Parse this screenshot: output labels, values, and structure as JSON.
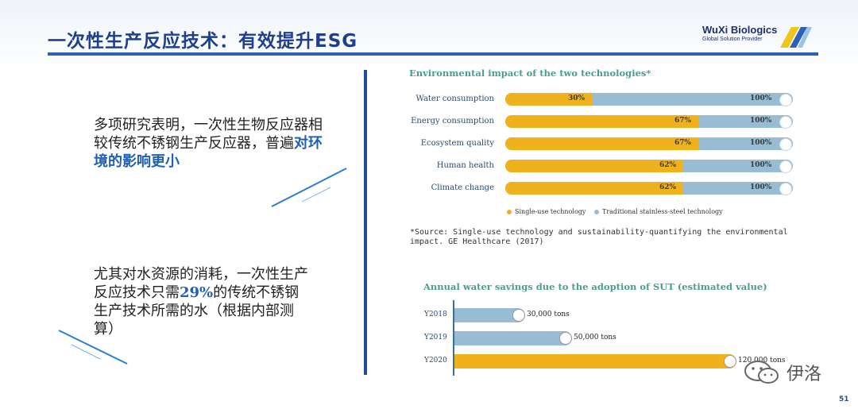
{
  "slide": {
    "title": "一次性生产反应技术：有效提升ESG",
    "page_number": "51"
  },
  "logo": {
    "brand": "WuXi Biologics",
    "tagline": "Global Solution Provider"
  },
  "paragraph1": {
    "text": "多项研究表明，一次性生物反应器相较传统不锈钢生产反应器，普遍",
    "highlight": "对环境的影响更小"
  },
  "paragraph2": {
    "text_before": "尤其对水资源的消耗，一次性生产反应技术只需",
    "highlight": "29%",
    "text_after": "的传统不锈钢生产技术所需的水（根据内部测算）"
  },
  "chart_data": [
    {
      "type": "bar",
      "title": "Environmental impact of the two technologies*",
      "categories": [
        "Water consumption",
        "Energy consumption",
        "Ecosystem quality",
        "Human health",
        "Climate change"
      ],
      "series": [
        {
          "name": "Single-use technology",
          "values": [
            30,
            67,
            67,
            62,
            62
          ],
          "labels": [
            "30%",
            "67%",
            "67%",
            "62%",
            "62%"
          ]
        },
        {
          "name": "Traditional stainless-steel technology",
          "values": [
            100,
            100,
            100,
            100,
            100
          ],
          "labels": [
            "100%",
            "100%",
            "100%",
            "100%",
            "100%"
          ]
        }
      ],
      "colors": {
        "single_use": "#f0b21c",
        "stainless": "#97bcd4"
      },
      "legend": "bottom",
      "source": "*Source: Single-use technology and sustainability-quantifying the environmental impact. GE Healthcare (2017)"
    },
    {
      "type": "bar",
      "title": "Annual water savings due to the adoption of SUT (estimated value)",
      "categories": [
        "Y2018",
        "Y2019",
        "Y2020"
      ],
      "values": [
        30000,
        50000,
        120000
      ],
      "value_labels": [
        "30,000 tons",
        "50,000 tons",
        "120,000 tons"
      ],
      "colors": [
        "#97bcd4",
        "#97bcd4",
        "#f0b21c"
      ]
    }
  ],
  "watermark": {
    "icon": "wechat-icon",
    "text": "伊洛"
  }
}
